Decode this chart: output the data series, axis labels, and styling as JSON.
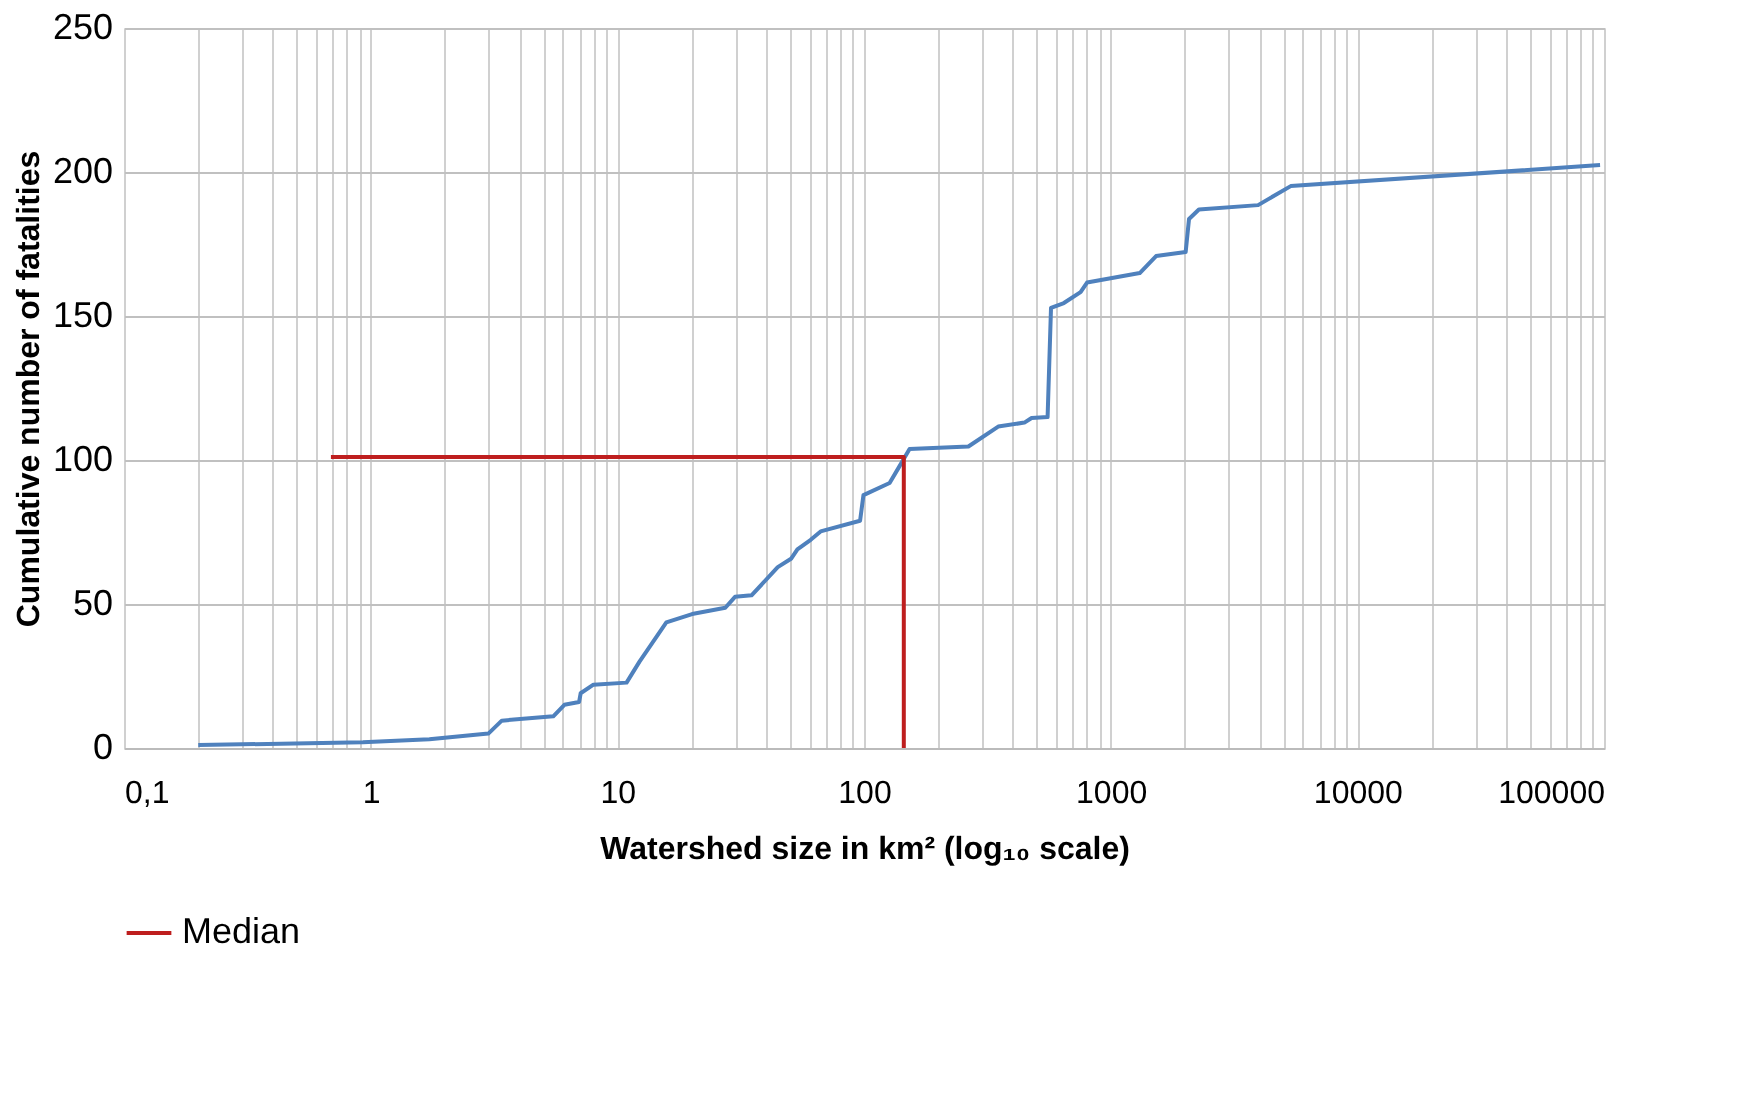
{
  "chart_data": {
    "type": "line",
    "xlabel": "Watershed size in km² (log₁₀ scale)",
    "ylabel": "Cumulative number of fatalities",
    "log": "x",
    "grid": true,
    "legend": "bottom",
    "line_style": "solid",
    "marker": "none",
    "xlim": [
      0.1,
      100000
    ],
    "ylim": [
      0,
      250
    ],
    "xticks": [
      {
        "value": 0.1,
        "label": "0,1"
      },
      {
        "value": 0.2,
        "label": null
      },
      {
        "value": 0.3,
        "label": null
      },
      {
        "value": 0.4,
        "label": null
      },
      {
        "value": 0.5,
        "label": null
      },
      {
        "value": 0.6,
        "label": null
      },
      {
        "value": 0.7,
        "label": null
      },
      {
        "value": 0.8,
        "label": null
      },
      {
        "value": 0.9,
        "label": null
      },
      1,
      {
        "value": 2,
        "label": null
      },
      {
        "value": 3,
        "label": null
      },
      {
        "value": 4,
        "label": null
      },
      {
        "value": 5,
        "label": null
      },
      {
        "value": 6,
        "label": null
      },
      {
        "value": 7,
        "label": null
      },
      {
        "value": 8,
        "label": null
      },
      {
        "value": 9,
        "label": null
      },
      10,
      {
        "value": 20,
        "label": null
      },
      {
        "value": 30,
        "label": null
      },
      {
        "value": 40,
        "label": null
      },
      {
        "value": 50,
        "label": null
      },
      {
        "value": 60,
        "label": null
      },
      {
        "value": 70,
        "label": null
      },
      {
        "value": 80,
        "label": null
      },
      {
        "value": 90,
        "label": null
      },
      100,
      {
        "value": 200,
        "label": null
      },
      {
        "value": 300,
        "label": null
      },
      {
        "value": 400,
        "label": null
      },
      {
        "value": 500,
        "label": null
      },
      {
        "value": 600,
        "label": null
      },
      {
        "value": 700,
        "label": null
      },
      {
        "value": 800,
        "label": null
      },
      {
        "value": 900,
        "label": null
      },
      1000,
      {
        "value": 2000,
        "label": null
      },
      {
        "value": 3000,
        "label": null
      },
      {
        "value": 4000,
        "label": null
      },
      {
        "value": 5000,
        "label": null
      },
      {
        "value": 6000,
        "label": null
      },
      {
        "value": 7000,
        "label": null
      },
      {
        "value": 8000,
        "label": null
      },
      {
        "value": 9000,
        "label": null
      },
      10000,
      {
        "value": 20000,
        "label": null
      },
      {
        "value": 30000,
        "label": null
      },
      {
        "value": 40000,
        "label": null
      },
      {
        "value": 50000,
        "label": null
      },
      {
        "value": 60000,
        "label": null
      },
      {
        "value": 70000,
        "label": null
      },
      {
        "value": 80000,
        "label": null
      },
      {
        "value": 90000,
        "label": null
      },
      100000
    ],
    "yticks": [
      0,
      50,
      100,
      150,
      200,
      250
    ],
    "series": [
      {
        "color": "#4f81bd",
        "x": [
          0.2,
          0.93,
          1.73,
          3.0,
          3.4,
          5.5,
          6.1,
          7.0,
          7.1,
          8.0,
          10.9,
          12.3,
          15.8,
          20.1,
          27.4,
          30,
          35,
          44.7,
          50.6,
          53.7,
          60.8,
          66.7,
          96.4,
          99.5,
          127,
          139,
          153,
          265,
          350,
          447,
          478,
          555,
          573,
          646,
          755,
          802,
          1312,
          1528,
          2014,
          2078,
          2279,
          3960,
          5370,
          96400
        ],
        "values": [
          1,
          2,
          3,
          5,
          9.5,
          11,
          15,
          16,
          19,
          22,
          22.7,
          30,
          43.6,
          46.5,
          48.7,
          52.5,
          53,
          62.8,
          65.7,
          69,
          72.3,
          75.2,
          78.9,
          87.8,
          92,
          97.7,
          103.8,
          104.7,
          111.6,
          113,
          114.6,
          114.9,
          152.8,
          154.5,
          158.3,
          161.6,
          164.9,
          170.8,
          172.2,
          183.7,
          187,
          188.5,
          195.1,
          202.4
        ]
      },
      {
        "name": "Median",
        "color": "#be1e1e",
        "x": [
          0.69,
          145,
          145
        ],
        "values": [
          101,
          101,
          0
        ]
      }
    ]
  }
}
